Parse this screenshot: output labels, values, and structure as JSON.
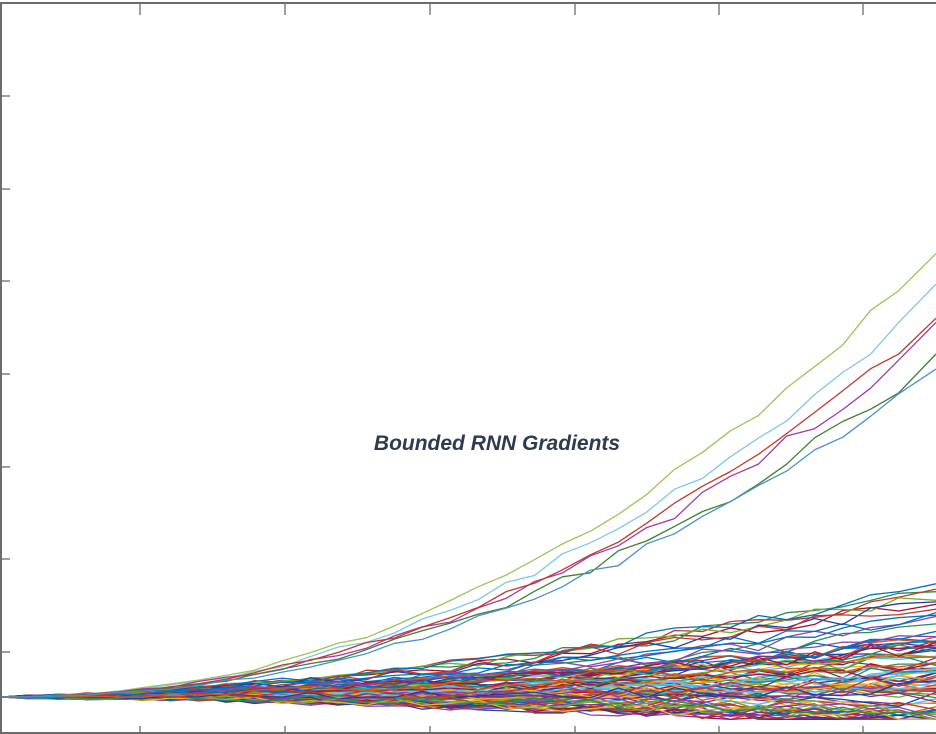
{
  "chart_data": {
    "type": "line",
    "title": "Bounded RNN Gradients",
    "xlabel": "",
    "ylabel": "",
    "x_ticks": 6,
    "y_ticks": 7,
    "xlim": [
      0,
      1
    ],
    "ylim": [
      0,
      7.5
    ],
    "x": [
      0,
      0.03,
      0.06,
      0.09,
      0.12,
      0.15,
      0.18,
      0.21,
      0.24,
      0.27,
      0.3,
      0.33,
      0.36,
      0.39,
      0.42,
      0.45,
      0.48,
      0.51,
      0.54,
      0.57,
      0.6,
      0.63,
      0.66,
      0.69,
      0.72,
      0.75,
      0.78,
      0.81,
      0.84,
      0.87,
      0.9,
      0.93,
      0.96,
      1.0
    ],
    "n_series": 90,
    "series": [
      {
        "color": "#7fc6e8",
        "end_value": 4.55,
        "amplitude": 0.08
      },
      {
        "color": "#9fc35a",
        "end_value": 4.95,
        "amplitude": 0.07
      },
      {
        "color": "#a23aa8",
        "end_value": 4.15,
        "amplitude": 0.09
      },
      {
        "color": "#c0392b",
        "end_value": 4.25,
        "amplitude": 0.07
      },
      {
        "color": "#3f7f2f",
        "end_value": 3.85,
        "amplitude": 0.08
      },
      {
        "color": "#4a8fd0",
        "end_value": 3.7,
        "amplitude": 0.07
      }
    ],
    "palette": [
      "#0072bd",
      "#d95319",
      "#edb120",
      "#7e2f8e",
      "#77ac30",
      "#4dbeee",
      "#a2142f",
      "#1f3f9f",
      "#2e8b57",
      "#c0392b",
      "#8e44ad"
    ],
    "grid": false,
    "legend": "none"
  }
}
